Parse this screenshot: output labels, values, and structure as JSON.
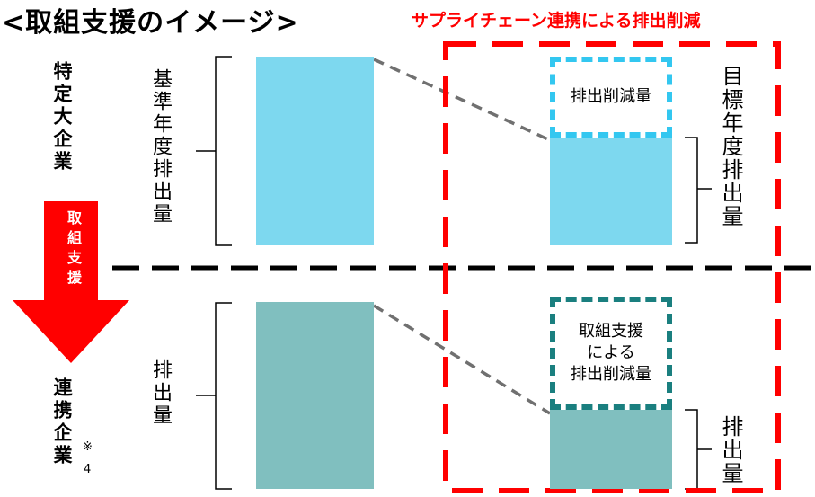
{
  "title": "<取組支援のイメージ>",
  "subtitle": "サプライチェーン連携による排出削減",
  "left_labels": {
    "top_company": "特定大企業",
    "bottom_company": "連携企業",
    "note_mark": "※",
    "note_num": "4",
    "arrow": "取組支援"
  },
  "top_row": {
    "baseline_label": "基準年度排出量",
    "reduction_label": "排出削減量",
    "target_label": "目標年度排出量"
  },
  "bottom_row": {
    "emission_label": "排出量",
    "reduction_label_lines": [
      "取組支援",
      "による",
      "排出削減量"
    ],
    "emission_after_label": "排出量"
  },
  "colors": {
    "top_bar": "#7dd8ef",
    "bottom_bar": "#80bfbf",
    "red": "#ff0000",
    "cyan_dash": "#33c7f0",
    "teal_dash": "#1a7f7f"
  }
}
